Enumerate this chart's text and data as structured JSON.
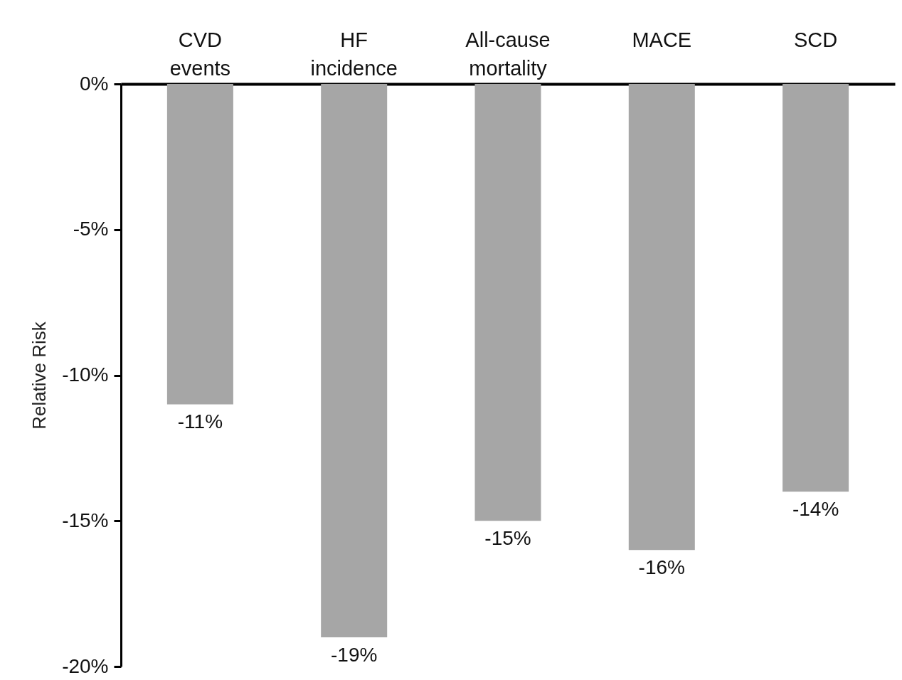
{
  "chart_data": {
    "type": "bar",
    "ylabel": "Relative Risk",
    "categories": [
      "CVD events",
      "HF incidence",
      "All-cause mortality",
      "MACE",
      "SCD"
    ],
    "values": [
      -11,
      -19,
      -15,
      -16,
      -14
    ],
    "value_labels": [
      "-11%",
      "-19%",
      "-15%",
      "-16%",
      "-14%"
    ],
    "color": "#a6a6a6",
    "ylim": [
      -20,
      0
    ],
    "yticks": [
      {
        "value": 0,
        "label": "0%"
      },
      {
        "value": -5,
        "label": "-5%"
      },
      {
        "value": -10,
        "label": "-10%"
      },
      {
        "value": -15,
        "label": "-15%"
      },
      {
        "value": -20,
        "label": "-20%"
      }
    ],
    "grid": false
  }
}
